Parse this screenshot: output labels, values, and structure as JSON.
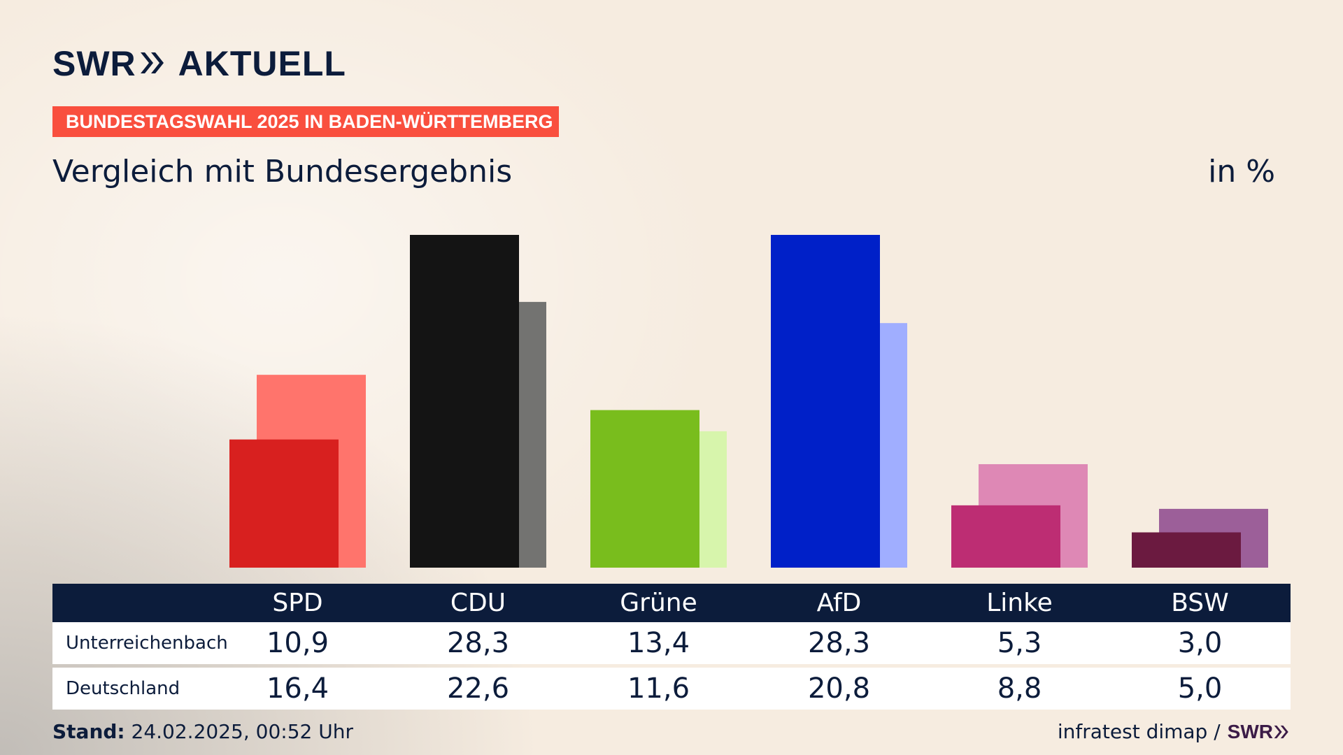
{
  "header": {
    "logo_text_1": "SWR",
    "logo_text_2": "AKTUELL",
    "tag": "BUNDESTAGSWAHL 2025 IN BADEN-WÜRTTEMBERG",
    "subtitle": "Vergleich mit Bundesergebnis",
    "unit": "in %"
  },
  "table": {
    "rows": [
      {
        "label": "Unterreichenbach",
        "values": [
          "10,9",
          "28,3",
          "13,4",
          "28,3",
          "5,3",
          "3,0"
        ]
      },
      {
        "label": "Deutschland",
        "values": [
          "16,4",
          "22,6",
          "11,6",
          "20,8",
          "8,8",
          "5,0"
        ]
      }
    ]
  },
  "footer": {
    "stand_label": "Stand:",
    "stand_value": " 24.02.2025, 00:52 Uhr",
    "source": "infratest dimap /",
    "source_logo": "SWR"
  },
  "chart_data": {
    "type": "bar",
    "categories": [
      "SPD",
      "CDU",
      "Grüne",
      "AfD",
      "Linke",
      "BSW"
    ],
    "series": [
      {
        "name": "Unterreichenbach",
        "values": [
          10.9,
          28.3,
          13.4,
          28.3,
          5.3,
          3.0
        ]
      },
      {
        "name": "Deutschland",
        "values": [
          16.4,
          22.6,
          11.6,
          20.8,
          8.8,
          5.0
        ]
      }
    ],
    "colors": {
      "Unterreichenbach": [
        "#d8201f",
        "#141414",
        "#79bd1d",
        "#0020c8",
        "#bd2d73",
        "#6b1a40"
      ],
      "Deutschland": [
        "#ff746c",
        "#737371",
        "#d7f5ac",
        "#a0aeff",
        "#de88b5",
        "#9c5f99"
      ]
    },
    "ylim": [
      0,
      28.3
    ],
    "grid": false,
    "legend": "none"
  }
}
